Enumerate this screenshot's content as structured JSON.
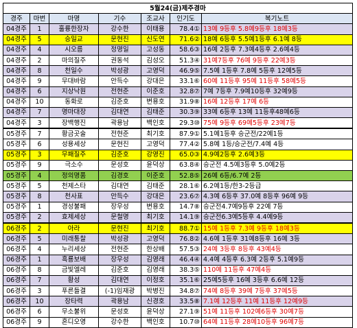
{
  "title": "5월24(금)제주경마",
  "headers": [
    "경주",
    "마번",
    "마명",
    "기수",
    "조교사",
    "인기도",
    "복기노트"
  ],
  "rows": [
    {
      "race": "04경주",
      "no": "1",
      "horse": "훌륭한장자",
      "jockey": "강수한",
      "trainer": "이태용",
      "pop": "78.4",
      "rank": "1",
      "note": "13예 9등후 5.8예9등후 18예3등",
      "red": true,
      "bg": "purple"
    },
    {
      "race": "04경주",
      "no": "5",
      "horse": "승일교",
      "jockey": "문현진",
      "trainer": "신도연",
      "pop": "71.6",
      "rank": "2",
      "note": "18예 6등후 5.5예1등후 6.1예 8등",
      "red": false,
      "bg": "yellow"
    },
    {
      "race": "04경주",
      "no": "4",
      "horse": "시오름",
      "jockey": "정명일",
      "trainer": "고성동",
      "pop": "58.6",
      "rank": "3",
      "note": "16예 2등후 7.3예4등후 2.6예4등",
      "red": false,
      "bg": "purple"
    },
    {
      "race": "04경주",
      "no": "2",
      "horse": "마의질주",
      "jockey": "권동석",
      "trainer": "김성오",
      "pop": "51.3",
      "rank": "4",
      "note": "31예7등후 76예 9등후 22예3등",
      "red": true,
      "bg": ""
    },
    {
      "race": "04경주",
      "no": "8",
      "horse": "천일수",
      "jockey": "박성광",
      "trainer": "고영덕",
      "pop": "46.9",
      "rank": "5",
      "note": "7.5예 1등후 7.8예 5등후 12예5등",
      "red": false,
      "bg": "purple"
    },
    {
      "race": "04경주",
      "no": "9",
      "horse": "무대바람",
      "jockey": "안득수",
      "trainer": "강대은",
      "pop": "33.1",
      "rank": "6",
      "note": "60예 11등후 95예 11등후 58예5등",
      "red": true,
      "bg": ""
    },
    {
      "race": "04경주",
      "no": "6",
      "horse": "지상낙원",
      "jockey": "전현준",
      "trainer": "이준호",
      "pop": "32.8",
      "rank": "7",
      "note": "7예 7등후 7.9예10등후 32예9등",
      "red": false,
      "bg": "purple"
    },
    {
      "race": "04경주",
      "no": "10",
      "horse": "동화로",
      "jockey": "김준호",
      "trainer": "변용호",
      "pop": "31.9",
      "rank": "8",
      "note": "16예 12등후 17예 6등",
      "red": true,
      "bg": ""
    },
    {
      "race": "04경주",
      "no": "7",
      "horse": "명마대장",
      "jockey": "김대연",
      "trainer": "김태준",
      "pop": "30.3",
      "rank": "9",
      "note": "33예 6등후 13예 11등후48예6등",
      "red": false,
      "bg": "purple"
    },
    {
      "race": "04경주",
      "no": "3",
      "horse": "장백행진",
      "jockey": "곽용남",
      "trainer": "백인호",
      "pop": "29.3",
      "rank": "10",
      "note": "75예 9등후 69예5등후 23예7등",
      "red": true,
      "bg": ""
    },
    {
      "race": "05경주",
      "no": "7",
      "horse": "황금곳술",
      "jockey": "전현준",
      "trainer": "최기호",
      "pop": "87.9",
      "rank": "1",
      "note": "5.1예1등후 승군전/22예1등",
      "red": false,
      "bg": "",
      "top": true
    },
    {
      "race": "05경주",
      "no": "6",
      "horse": "성용세상",
      "jockey": "문현진",
      "trainer": "고영덕",
      "pop": "77.4",
      "rank": "2",
      "note": "5.8예 1등/승군전/7.4예 4등",
      "red": false,
      "bg": ""
    },
    {
      "race": "05경주",
      "no": "3",
      "horse": "무패질주",
      "jockey": "김준호",
      "trainer": "강영진",
      "pop": "65.0",
      "rank": "3",
      "note": "4.9예2등후 2.6예3등",
      "red": false,
      "bg": "yellow"
    },
    {
      "race": "05경주",
      "no": "9",
      "horse": "극소수",
      "jockey": "문성호",
      "trainer": "윤덕상",
      "pop": "63.8",
      "rank": "4",
      "note": "승군전 4.5예3등후 5.0예2등",
      "red": false,
      "bg": ""
    },
    {
      "race": "05경주",
      "no": "4",
      "horse": "정의명품",
      "jockey": "김경호",
      "trainer": "이준호",
      "pop": "52.8",
      "rank": "5",
      "note": "26예 6등/6.7예 2등",
      "red": false,
      "bg": "green"
    },
    {
      "race": "05경주",
      "no": "5",
      "horse": "천제스타",
      "jockey": "김대연",
      "trainer": "김태준",
      "pop": "28.1",
      "rank": "6",
      "note": "6.2예1등/한3-2등급",
      "red": false,
      "bg": ""
    },
    {
      "race": "05경주",
      "no": "8",
      "horse": "천사표",
      "jockey": "안득수",
      "trainer": "강대은",
      "pop": "23.6",
      "rank": "7",
      "note": "4.3예 6등후 37.0예 8등후 96예 9등",
      "red": false,
      "bg": "purple"
    },
    {
      "race": "05경주",
      "no": "1",
      "horse": "경성불패",
      "jockey": "장우성",
      "trainer": "변용호",
      "pop": "14.7",
      "rank": "8",
      "note": "승군전4.7예9등후 22예 7등",
      "red": false,
      "bg": ""
    },
    {
      "race": "05경주",
      "no": "2",
      "horse": "효제세상",
      "jockey": "문철명",
      "trainer": "최기호",
      "pop": "14.1",
      "rank": "9",
      "note": "승군전6.3예5등후 4.4예9등",
      "red": false,
      "bg": "purple"
    },
    {
      "race": "06경주",
      "no": "2",
      "horse": "아라",
      "jockey": "문현진",
      "trainer": "최기호",
      "pop": "88.7",
      "rank": "1",
      "note": "15예 1등후 7.3예 9등후 18예3등",
      "red": true,
      "bg": "yellow",
      "top": true
    },
    {
      "race": "06경주",
      "no": "5",
      "horse": "미래통찰",
      "jockey": "박성광",
      "trainer": "고영덕",
      "pop": "76.8",
      "rank": "2",
      "note": "4.6예 1등후 31예8등후 16예 3등",
      "red": false,
      "bg": "purple"
    },
    {
      "race": "06경주",
      "no": "4",
      "horse": "누리세상",
      "jockey": "전현준",
      "trainer": "한상배",
      "pop": "57.5",
      "rank": "3",
      "note": "24예 3등후 8등후 43예4등",
      "red": true,
      "bg": ""
    },
    {
      "race": "06경주",
      "no": "1",
      "horse": "흑룡보배",
      "jockey": "장우성",
      "trainer": "김영래",
      "pop": "46.4",
      "rank": "4",
      "note": "4.4예 4등후 6.3예 2등후 5.1예9등",
      "red": false,
      "bg": "purple"
    },
    {
      "race": "06경주",
      "no": "8",
      "horse": "금빛엘레",
      "jockey": "김준호",
      "trainer": "김영래",
      "pop": "38.3",
      "rank": "5",
      "note": "110예 11등후 47예4등",
      "red": true,
      "bg": ""
    },
    {
      "race": "06경주",
      "no": "7",
      "horse": "황성",
      "jockey": "김대연",
      "trainer": "이정호",
      "pop": "35.1",
      "rank": "6",
      "note": "25예5등후 16예 3등후 6.6예 12등",
      "red": false,
      "bg": "purple"
    },
    {
      "race": "06경주",
      "no": "3",
      "horse": "푸른들결",
      "jockey": "(-1)임재광",
      "trainer": "박병진",
      "pop": "34.8",
      "rank": "7",
      "note": "74예 8등후 39예 7등후 37예5등",
      "red": true,
      "bg": ""
    },
    {
      "race": "06경주",
      "no": "10",
      "horse": "장타력",
      "jockey": "곽용남",
      "trainer": "신경호",
      "pop": "33.5",
      "rank": "8",
      "note": "7.1예 12등후 11예 11등후 12예9등",
      "red": true,
      "bg": "purple"
    },
    {
      "race": "06경주",
      "no": "6",
      "horse": "무소불위",
      "jockey": "문성호",
      "trainer": "윤덕상",
      "pop": "27.1",
      "rank": "9",
      "note": "51예 11등후 102예6등후 30예7등",
      "red": true,
      "bg": ""
    },
    {
      "race": "06경주",
      "no": "9",
      "horse": "혼디오영",
      "jockey": "강수한",
      "trainer": "백인호",
      "pop": "10.7",
      "rank": "10",
      "note": "64예 11등후 28예10등후 96예7등",
      "red": true,
      "bg": ""
    }
  ]
}
